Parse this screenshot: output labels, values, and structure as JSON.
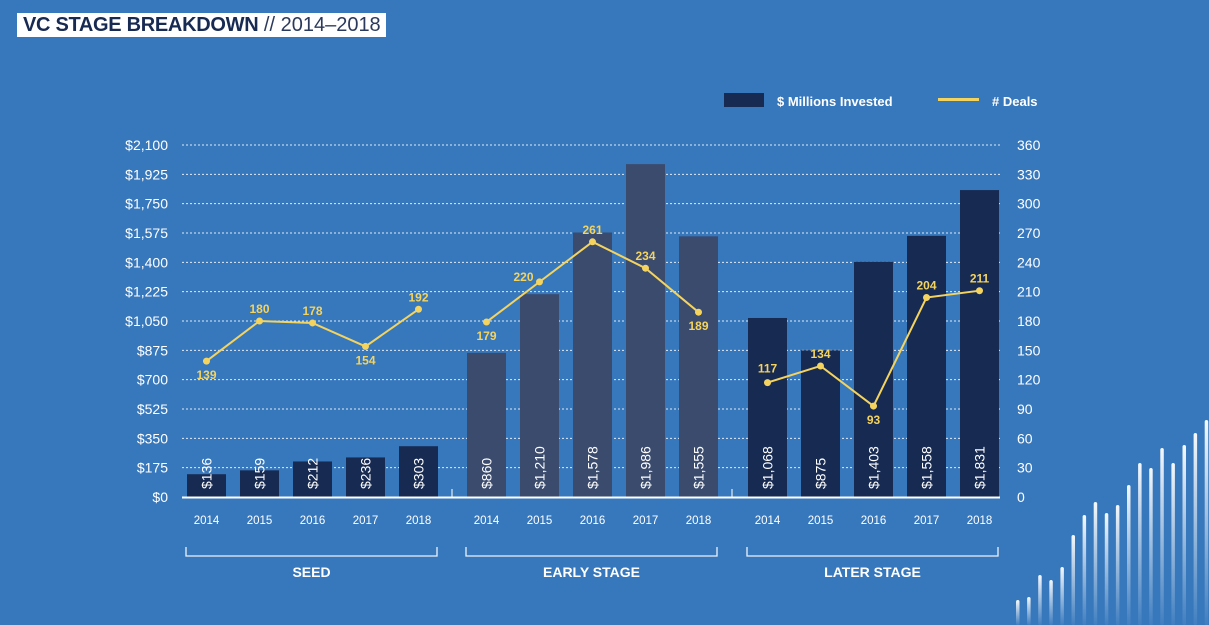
{
  "title": {
    "main": "VC STAGE BREAKDOWN",
    "suffix": "// 2014–2018"
  },
  "legend": {
    "bars": "$ Millions Invested",
    "line": "# Deals"
  },
  "colors": {
    "background": "#3778bd",
    "bar_dark": "#172a52",
    "bar_early": "#3a4b6e",
    "line": "#f4d35e",
    "text": "#ffffff"
  },
  "chart_data": {
    "type": "bar+line",
    "title": "VC STAGE BREAKDOWN // 2014–2018",
    "categories": [
      "2014",
      "2015",
      "2016",
      "2017",
      "2018"
    ],
    "groups": [
      {
        "name": "SEED",
        "invested": [
          136,
          159,
          212,
          236,
          303
        ],
        "invested_labels": [
          "$136",
          "$159",
          "$212",
          "$236",
          "$303"
        ],
        "deals": [
          139,
          180,
          178,
          154,
          192
        ]
      },
      {
        "name": "EARLY STAGE",
        "invested": [
          860,
          1210,
          1578,
          1986,
          1555
        ],
        "invested_labels": [
          "$860",
          "$1,210",
          "$1,578",
          "$1,986",
          "$1,555"
        ],
        "deals": [
          179,
          220,
          261,
          234,
          189
        ]
      },
      {
        "name": "LATER STAGE",
        "invested": [
          1068,
          875,
          1403,
          1558,
          1831
        ],
        "invested_labels": [
          "$1,068",
          "$875",
          "$1,403",
          "$1,558",
          "$1,831"
        ],
        "deals": [
          117,
          134,
          93,
          204,
          211
        ]
      }
    ],
    "y_left": {
      "label": "$ Millions Invested",
      "range": [
        0,
        2100
      ],
      "ticks": [
        "$0",
        "$175",
        "$350",
        "$525",
        "$700",
        "$875",
        "$1,050",
        "$1,225",
        "$1,400",
        "$1,575",
        "$1,750",
        "$1,925",
        "$2,100"
      ]
    },
    "y_right": {
      "label": "# Deals",
      "range": [
        0,
        360
      ],
      "ticks": [
        "0",
        "30",
        "60",
        "90",
        "120",
        "150",
        "180",
        "210",
        "240",
        "270",
        "300",
        "330",
        "360"
      ]
    },
    "grid": true,
    "legend_position": "top-right"
  }
}
